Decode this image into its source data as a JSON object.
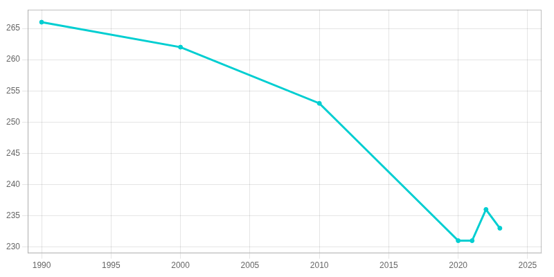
{
  "chart_data": {
    "type": "line",
    "x": [
      1990,
      2000,
      2010,
      2020,
      2021,
      2022,
      2023
    ],
    "values": [
      266,
      262,
      253,
      231,
      231,
      236,
      233
    ],
    "color": "#00CED1",
    "marker": "circle",
    "xlim": [
      1989,
      2026
    ],
    "xticks": [
      1990,
      1995,
      2000,
      2005,
      2010,
      2015,
      2020,
      2025
    ],
    "ylim": [
      229,
      268
    ],
    "yticks": [
      230,
      235,
      240,
      245,
      250,
      255,
      260,
      265
    ],
    "grid": true
  }
}
